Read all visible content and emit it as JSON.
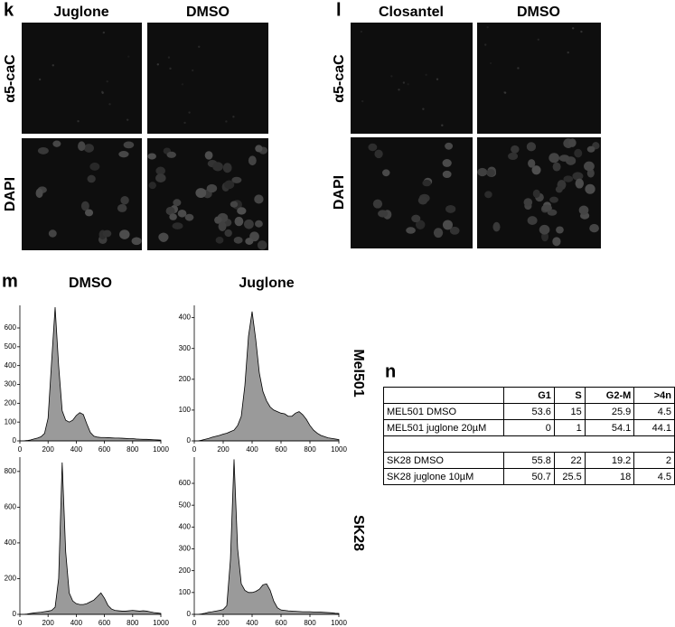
{
  "panel_k": {
    "label": "k",
    "columns": [
      "Juglone",
      "DMSO"
    ],
    "rows": [
      "α5-caC",
      "DAPI"
    ]
  },
  "panel_l": {
    "label": "l",
    "columns": [
      "Closantel",
      "DMSO"
    ],
    "rows": [
      "α5-caC",
      "DAPI"
    ]
  },
  "panel_m": {
    "label": "m",
    "columns": [
      "DMSO",
      "Juglone"
    ],
    "rows": [
      "Mel501",
      "SK28"
    ]
  },
  "chart_data": [
    {
      "type": "area",
      "color": "#9a9a9a",
      "x": [
        0,
        25,
        50,
        75,
        100,
        125,
        150,
        175,
        200,
        225,
        250,
        275,
        300,
        325,
        350,
        375,
        400,
        425,
        450,
        475,
        500,
        525,
        550,
        575,
        600,
        625,
        650,
        675,
        700,
        725,
        750,
        775,
        800,
        825,
        850,
        875,
        900,
        925,
        950,
        975,
        1000
      ],
      "values": [
        0,
        0,
        2,
        5,
        10,
        15,
        22,
        40,
        120,
        420,
        710,
        400,
        160,
        110,
        100,
        110,
        135,
        150,
        140,
        90,
        45,
        25,
        20,
        18,
        18,
        17,
        16,
        15,
        15,
        14,
        13,
        12,
        12,
        10,
        9,
        8,
        8,
        7,
        6,
        5,
        4
      ],
      "xlim": [
        0,
        1000
      ],
      "xticks": [
        0,
        200,
        400,
        600,
        800,
        1000
      ],
      "ylim": [
        0,
        720
      ],
      "yticks": [
        0,
        100,
        200,
        300,
        400,
        500,
        600
      ]
    },
    {
      "type": "area",
      "color": "#9a9a9a",
      "x": [
        0,
        25,
        50,
        75,
        100,
        125,
        150,
        175,
        200,
        225,
        250,
        275,
        300,
        325,
        350,
        375,
        400,
        425,
        450,
        475,
        500,
        525,
        550,
        575,
        600,
        625,
        650,
        675,
        700,
        725,
        750,
        775,
        800,
        825,
        850,
        875,
        900,
        925,
        950,
        975,
        1000
      ],
      "values": [
        0,
        0,
        2,
        5,
        8,
        12,
        15,
        18,
        22,
        25,
        30,
        35,
        50,
        80,
        180,
        340,
        420,
        330,
        220,
        160,
        130,
        110,
        100,
        95,
        90,
        88,
        80,
        80,
        90,
        95,
        85,
        70,
        50,
        35,
        25,
        18,
        14,
        10,
        8,
        6,
        4
      ],
      "xlim": [
        0,
        1000
      ],
      "xticks": [
        0,
        200,
        400,
        600,
        800,
        1000
      ],
      "ylim": [
        0,
        440
      ],
      "yticks": [
        0,
        100,
        200,
        300,
        400
      ]
    },
    {
      "type": "area",
      "color": "#9a9a9a",
      "x": [
        0,
        25,
        50,
        75,
        100,
        125,
        150,
        175,
        200,
        225,
        250,
        275,
        300,
        325,
        350,
        375,
        400,
        425,
        450,
        475,
        500,
        525,
        550,
        575,
        600,
        625,
        650,
        675,
        700,
        725,
        750,
        775,
        800,
        825,
        850,
        875,
        900,
        925,
        950,
        975,
        1000
      ],
      "values": [
        0,
        0,
        2,
        5,
        8,
        10,
        12,
        15,
        18,
        22,
        40,
        200,
        850,
        350,
        120,
        75,
        60,
        55,
        55,
        60,
        70,
        80,
        100,
        120,
        90,
        50,
        30,
        22,
        20,
        18,
        18,
        20,
        22,
        20,
        18,
        20,
        18,
        14,
        10,
        8,
        5
      ],
      "xlim": [
        0,
        1000
      ],
      "xticks": [
        0,
        200,
        400,
        600,
        800,
        1000
      ],
      "ylim": [
        0,
        880
      ],
      "yticks": [
        0,
        200,
        400,
        600,
        800
      ]
    },
    {
      "type": "area",
      "color": "#9a9a9a",
      "x": [
        0,
        25,
        50,
        75,
        100,
        125,
        150,
        175,
        200,
        225,
        250,
        275,
        300,
        325,
        350,
        375,
        400,
        425,
        450,
        475,
        500,
        525,
        550,
        575,
        600,
        625,
        650,
        675,
        700,
        725,
        750,
        775,
        800,
        825,
        850,
        875,
        900,
        925,
        950,
        975,
        1000
      ],
      "values": [
        0,
        0,
        2,
        5,
        10,
        12,
        15,
        18,
        22,
        40,
        250,
        710,
        300,
        140,
        110,
        100,
        100,
        105,
        115,
        135,
        140,
        110,
        60,
        30,
        20,
        18,
        16,
        15,
        14,
        13,
        12,
        12,
        12,
        11,
        11,
        10,
        9,
        8,
        7,
        5,
        4
      ],
      "xlim": [
        0,
        1000
      ],
      "xticks": [
        0,
        200,
        400,
        600,
        800,
        1000
      ],
      "ylim": [
        0,
        720
      ],
      "yticks": [
        0,
        100,
        200,
        300,
        400,
        500,
        600
      ]
    }
  ],
  "table": {
    "label": "n",
    "header": [
      "G1",
      "S",
      "G2-M",
      ">4n"
    ],
    "rows": [
      [
        "MEL501 DMSO",
        53.6,
        15,
        25.9,
        4.5
      ],
      [
        "MEL501 juglone 20µM",
        0,
        1,
        54.1,
        44.1
      ],
      [
        "SK28 DMSO",
        55.8,
        22,
        19.2,
        2
      ],
      [
        "SK28 juglone 10µM",
        50.7,
        25.5,
        18,
        4.5
      ]
    ]
  }
}
